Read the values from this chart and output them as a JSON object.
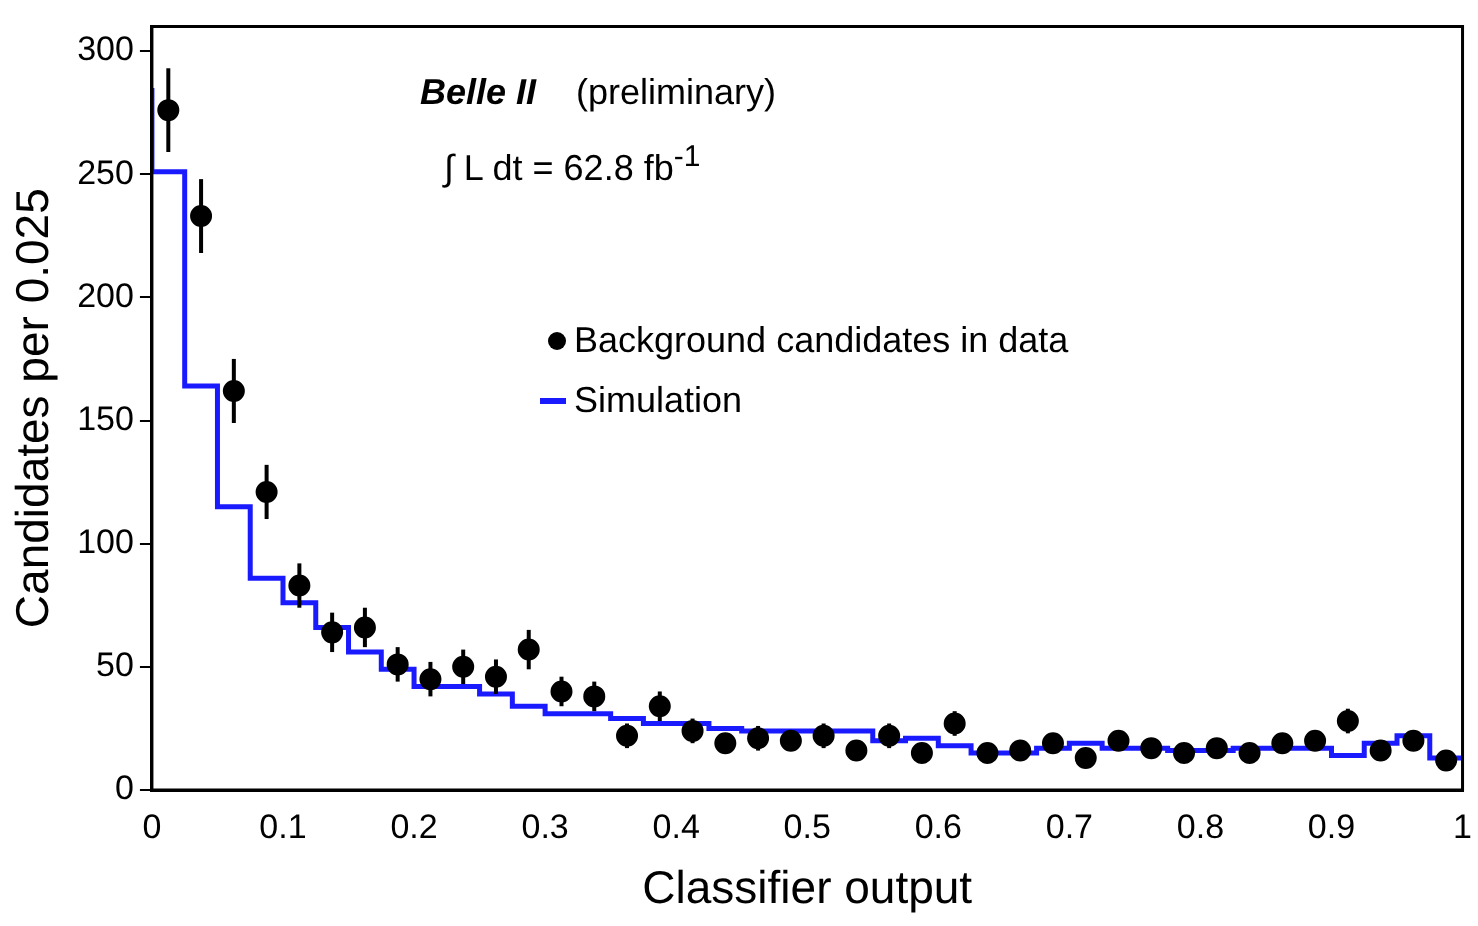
{
  "chart_data": {
    "type": "scatter",
    "xlabel": "Classifier output",
    "ylabel": "Candidates per 0.025",
    "annotations": [
      "Belle II",
      "(preliminary)",
      "∫ L dt = 62.8 fb$^{-1}$"
    ],
    "xlim": [
      0,
      1
    ],
    "ylim": [
      0,
      310
    ],
    "xticks": [
      0,
      0.1,
      0.2,
      0.3,
      0.4,
      0.5,
      0.6,
      0.7,
      0.8,
      0.9,
      1
    ],
    "yticks": [
      0,
      50,
      100,
      150,
      200,
      250,
      300
    ],
    "legend": "top",
    "series": [
      {
        "name": "Background candidates in data",
        "marker": "circle",
        "color": "#000000",
        "x": [
          0.0125,
          0.0375,
          0.0625,
          0.0875,
          0.1125,
          0.1375,
          0.1625,
          0.1875,
          0.2125,
          0.2375,
          0.2625,
          0.2875,
          0.3125,
          0.3375,
          0.3625,
          0.3875,
          0.4125,
          0.4375,
          0.4625,
          0.4875,
          0.5125,
          0.5375,
          0.5625,
          0.5875,
          0.6125,
          0.6375,
          0.6625,
          0.6875,
          0.7125,
          0.7375,
          0.7625,
          0.7875,
          0.8125,
          0.8375,
          0.8625,
          0.8875,
          0.9125,
          0.9375,
          0.9625,
          0.9875
        ],
        "values": [
          276,
          233,
          162,
          121,
          83,
          64,
          66,
          51,
          45,
          50,
          46,
          57,
          40,
          38,
          22,
          34,
          24,
          19,
          21,
          20,
          22,
          16,
          22,
          15,
          27,
          15,
          16,
          19,
          13,
          20,
          17,
          15,
          17,
          15,
          19,
          20,
          28,
          16,
          20,
          12
        ],
        "errors": [
          17,
          15,
          13,
          11,
          9,
          8,
          8,
          7,
          7,
          7,
          7,
          8,
          6,
          6,
          5,
          6,
          5,
          4,
          5,
          4,
          5,
          4,
          5,
          4,
          5,
          4,
          4,
          4,
          4,
          4,
          4,
          4,
          4,
          4,
          4,
          4,
          5,
          4,
          4,
          3
        ]
      },
      {
        "name": "Simulation",
        "type": "step",
        "marker": "none",
        "color": "#1a1aff",
        "x": [
          0,
          0.025,
          0.05,
          0.075,
          0.1,
          0.125,
          0.15,
          0.175,
          0.2,
          0.225,
          0.25,
          0.275,
          0.3,
          0.325,
          0.35,
          0.375,
          0.4,
          0.425,
          0.45,
          0.475,
          0.5,
          0.525,
          0.55,
          0.575,
          0.6,
          0.625,
          0.65,
          0.675,
          0.7,
          0.725,
          0.75,
          0.775,
          0.8,
          0.825,
          0.85,
          0.875,
          0.9,
          0.925,
          0.95,
          0.975,
          1
        ],
        "values": [
          285,
          251,
          164,
          115,
          86,
          76,
          66,
          56,
          49,
          42,
          42,
          39,
          34,
          31,
          31,
          29,
          27,
          27,
          25,
          24,
          24,
          24,
          24,
          20,
          21,
          18,
          15,
          15,
          17,
          19,
          17,
          17,
          16,
          16,
          17,
          17,
          17,
          14,
          19,
          22,
          13
        ]
      }
    ]
  }
}
